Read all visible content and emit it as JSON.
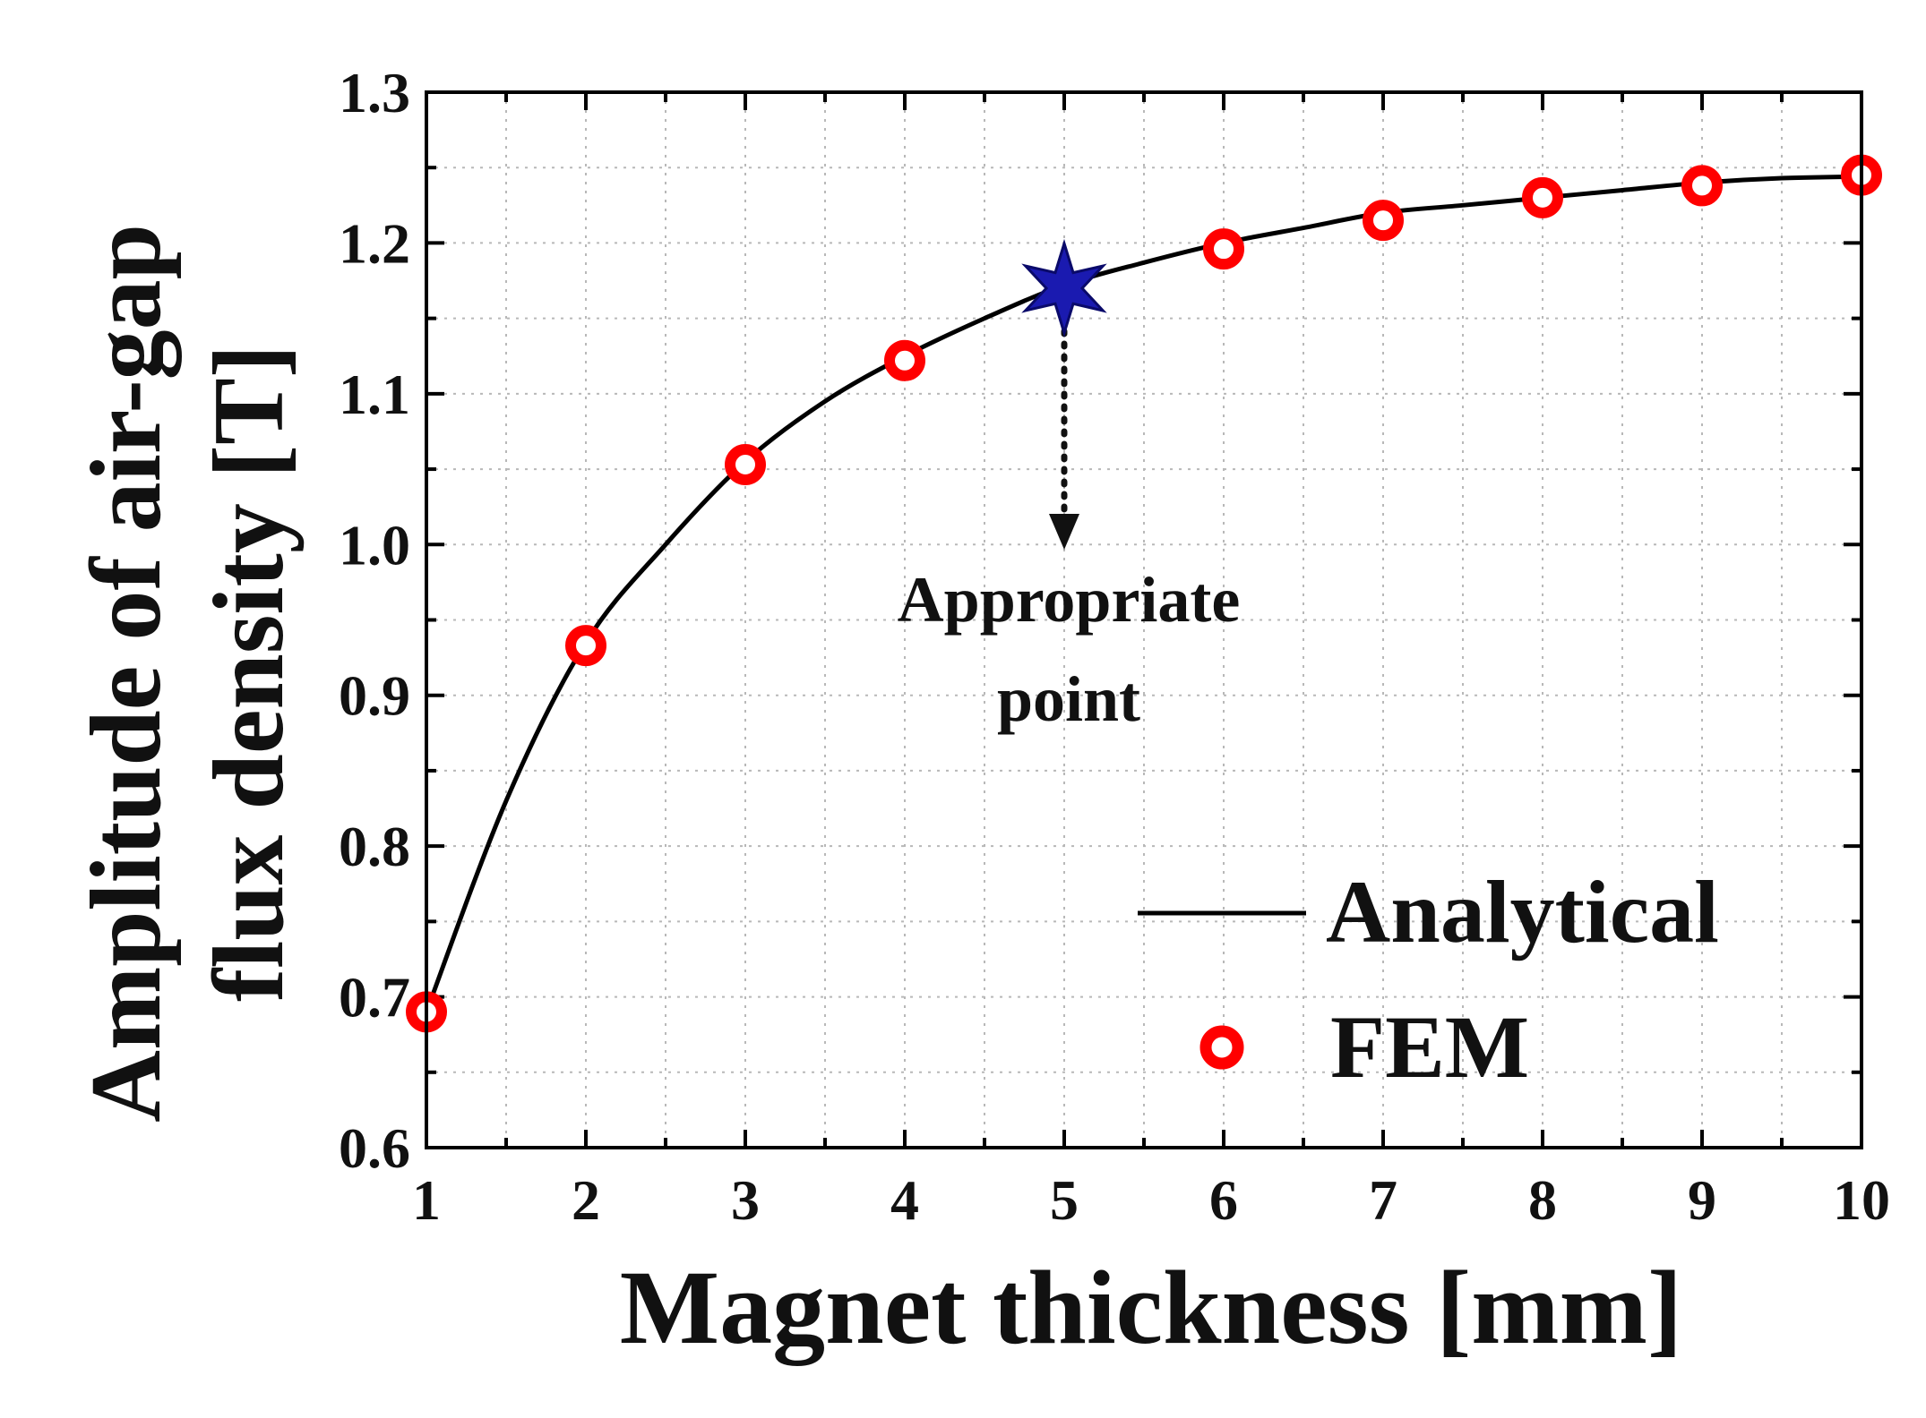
{
  "chart_data": {
    "type": "line",
    "title": "",
    "xlabel": "Magnet thickness [mm]",
    "ylabel_line1": "Amplitude of air-gap",
    "ylabel_line2": "flux density [T]",
    "xlim": [
      1,
      10
    ],
    "ylim": [
      0.6,
      1.3
    ],
    "x_ticks": [
      "1",
      "2",
      "3",
      "4",
      "5",
      "6",
      "7",
      "8",
      "9",
      "10"
    ],
    "y_ticks": [
      "0.6",
      "0.7",
      "0.8",
      "0.9",
      "1.0",
      "1.1",
      "1.2",
      "1.3"
    ],
    "grid": true,
    "legend_position": "bottom-right",
    "series": [
      {
        "name": "Analytical",
        "style": "line",
        "color": "#000000",
        "x": [
          1,
          1.5,
          2,
          2.5,
          3,
          3.5,
          4,
          4.5,
          5,
          5.5,
          6,
          6.5,
          7,
          7.5,
          8,
          8.5,
          9,
          9.5,
          10
        ],
        "y": [
          0.69,
          0.83,
          0.935,
          1.0,
          1.055,
          1.095,
          1.125,
          1.15,
          1.172,
          1.187,
          1.2,
          1.21,
          1.22,
          1.225,
          1.23,
          1.235,
          1.24,
          1.243,
          1.244
        ]
      },
      {
        "name": "FEM",
        "style": "marker",
        "color": "#ff0000",
        "x": [
          1,
          2,
          3,
          4,
          5,
          6,
          7,
          8,
          9,
          10
        ],
        "y": [
          0.69,
          0.933,
          1.053,
          1.122,
          1.17,
          1.196,
          1.215,
          1.23,
          1.238,
          1.245
        ]
      }
    ],
    "annotation": {
      "line1": "Appropriate",
      "line2": "point",
      "x": 5,
      "y": 1.17,
      "marker": "star",
      "marker_color": "#1a1ab0"
    }
  }
}
